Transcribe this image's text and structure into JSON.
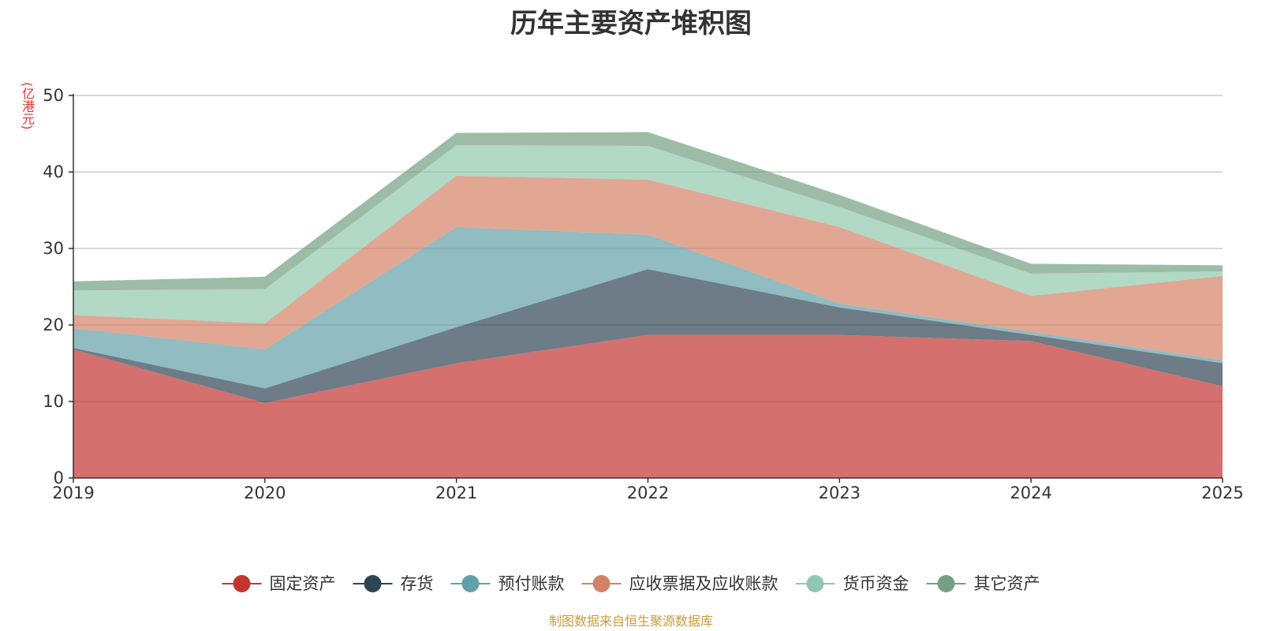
{
  "chart_data": {
    "type": "area",
    "stacked": true,
    "title": "历年主要资产堆积图",
    "unit": "(亿港元)",
    "x": [
      "2019",
      "2020",
      "2021",
      "2022",
      "2023",
      "2024",
      "2025"
    ],
    "ylim": [
      0,
      50
    ],
    "yticks": [
      "0",
      "10",
      "20",
      "30",
      "40",
      "50"
    ],
    "grid": true,
    "legend_position": "bottom",
    "series": [
      {
        "name": "固定资产",
        "color": "#c23531",
        "values": [
          16.8,
          9.8,
          15.0,
          18.7,
          18.7,
          17.9,
          12.0
        ]
      },
      {
        "name": "存货",
        "color": "#2f4554",
        "values": [
          0.2,
          1.9,
          4.7,
          8.6,
          3.6,
          0.8,
          3.0
        ]
      },
      {
        "name": "预付账款",
        "color": "#61a0a8",
        "values": [
          2.6,
          5.1,
          13.1,
          4.5,
          0.5,
          0.4,
          0.4
        ]
      },
      {
        "name": "应收票据及应收账款",
        "color": "#d48265",
        "values": [
          1.7,
          3.4,
          6.7,
          7.2,
          10.0,
          4.7,
          11.0
        ]
      },
      {
        "name": "货币资金",
        "color": "#91c7ae",
        "values": [
          3.2,
          4.5,
          4.0,
          4.4,
          2.6,
          2.9,
          0.6
        ]
      },
      {
        "name": "其它资产",
        "color": "#749f83",
        "values": [
          1.2,
          1.6,
          1.6,
          1.8,
          1.6,
          1.3,
          0.8
        ]
      }
    ]
  },
  "source_note": "制图数据来自恒生聚源数据库"
}
